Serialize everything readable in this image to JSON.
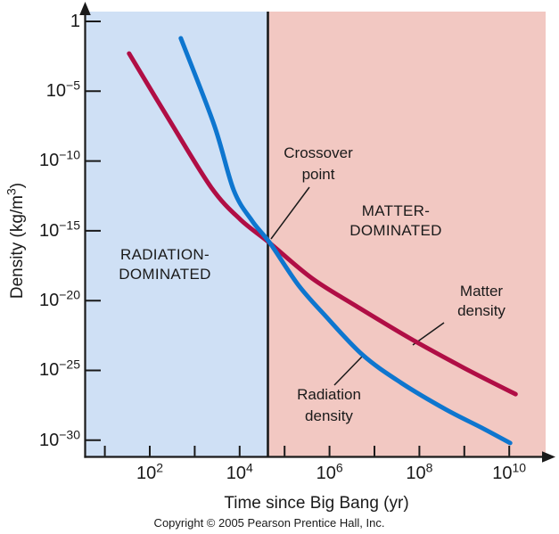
{
  "figure": {
    "y_axis_title": {
      "pre": "Density (kg/m",
      "sup": "3",
      "post": ")"
    },
    "x_axis_title": "Time since Big Bang (yr)",
    "copyright": "Copyright © 2005 Pearson Prentice Hall, Inc.",
    "regions": {
      "radiation": {
        "label": "RADIATION-\nDOMINATED",
        "bg": "#cfe0f5"
      },
      "matter": {
        "label": "MATTER-\nDOMINATED",
        "bg": "#f2c8c2"
      }
    },
    "annotations": {
      "crossover": "Crossover\npoint",
      "matter_curve": "Matter\ndensity",
      "radiation_curve": "Radiation\ndensity"
    },
    "y_ticks": [
      {
        "base": "1",
        "exp": ""
      },
      {
        "base": "10",
        "exp": "−5"
      },
      {
        "base": "10",
        "exp": "−10"
      },
      {
        "base": "10",
        "exp": "−15"
      },
      {
        "base": "10",
        "exp": "−20"
      },
      {
        "base": "10",
        "exp": "−25"
      },
      {
        "base": "10",
        "exp": "−30"
      }
    ],
    "x_ticks": [
      {
        "base": "10",
        "exp": "2"
      },
      {
        "base": "10",
        "exp": "4"
      },
      {
        "base": "10",
        "exp": "6"
      },
      {
        "base": "10",
        "exp": "8"
      },
      {
        "base": "10",
        "exp": "10"
      }
    ]
  },
  "chart_data": {
    "type": "line",
    "title": "",
    "xlabel": "Time since Big Bang (yr)",
    "ylabel": "Density (kg/m³)",
    "x_scale": "log",
    "y_scale": "log",
    "xlim_log10": [
      1,
      10.3
    ],
    "ylim_log10": [
      -31,
      0.7
    ],
    "grid": false,
    "x_tick_exponents": [
      1,
      2,
      3,
      4,
      5,
      6,
      7,
      8,
      9,
      10
    ],
    "x_labeled_exponents": [
      2,
      4,
      6,
      8,
      10
    ],
    "y_labeled_exponents": [
      0,
      -5,
      -10,
      -15,
      -20,
      -25,
      -30
    ],
    "regions": [
      {
        "name": "RADIATION-DOMINATED",
        "t_log10_range": [
          1,
          4.68
        ]
      },
      {
        "name": "MATTER-DOMINATED",
        "t_log10_range": [
          4.68,
          10.3
        ]
      }
    ],
    "crossover_point": {
      "t_log10": 4.68,
      "density_log10": -15.9
    },
    "series": [
      {
        "name": "Matter density",
        "color": "#b00e45",
        "points_log10": [
          [
            1.54,
            -2.3
          ],
          [
            2.44,
            -7.1
          ],
          [
            3.37,
            -11.9
          ],
          [
            4.02,
            -14.2
          ],
          [
            4.68,
            -15.9
          ],
          [
            5.61,
            -18.4
          ],
          [
            6.6,
            -20.4
          ],
          [
            7.79,
            -22.7
          ],
          [
            8.98,
            -24.8
          ],
          [
            10.14,
            -26.7
          ]
        ]
      },
      {
        "name": "Radiation density",
        "color": "#0e76cf",
        "points_log10": [
          [
            2.69,
            -1.21
          ],
          [
            3.43,
            -7.4
          ],
          [
            3.87,
            -12.1
          ],
          [
            4.28,
            -14.3
          ],
          [
            4.68,
            -15.9
          ],
          [
            5.31,
            -18.9
          ],
          [
            5.91,
            -21.1
          ],
          [
            6.74,
            -23.9
          ],
          [
            7.6,
            -25.9
          ],
          [
            8.59,
            -27.8
          ],
          [
            9.38,
            -29.1
          ],
          [
            10.02,
            -30.2
          ]
        ]
      }
    ]
  }
}
